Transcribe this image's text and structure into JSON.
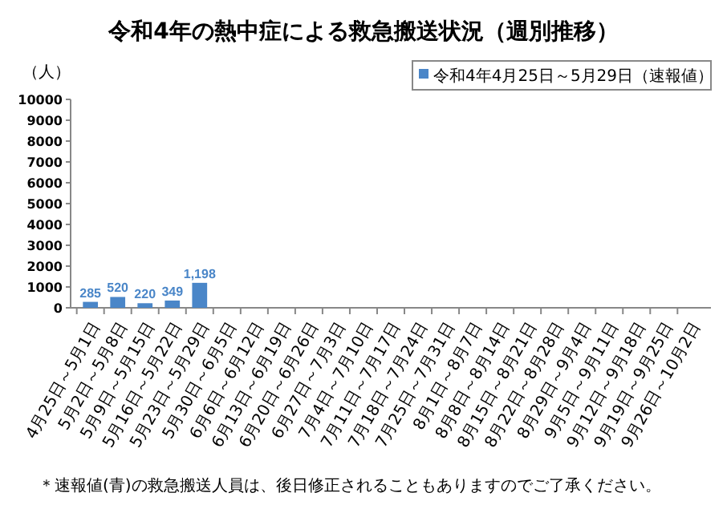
{
  "chart_data": {
    "type": "bar",
    "title": "令和4年の熱中症による救急搬送状況（週別推移）",
    "ylabel": "（人）",
    "categories": [
      "4月25日～5月1日",
      "5月2日～5月8日",
      "5月9日～5月15日",
      "5月16日～5月22日",
      "5月23日～5月29日",
      "5月30日～6月5日",
      "6月6日～6月12日",
      "6月13日～6月19日",
      "6月20日～6月26日",
      "6月27日～7月3日",
      "7月4日～7月10日",
      "7月11日～7月17日",
      "7月18日～7月24日",
      "7月25日～7月31日",
      "8月1日～8月7日",
      "8月8日～8月14日",
      "8月15日～8月21日",
      "8月22日～8月28日",
      "8月29日～9月4日",
      "9月5日～9月11日",
      "9月12日～9月18日",
      "9月19日～9月25日",
      "9月26日～10月2日"
    ],
    "series": [
      {
        "name": "令和4年4月25日～5月29日（速報値）",
        "color": "#4a86c8",
        "values": [
          285,
          520,
          220,
          349,
          1198,
          null,
          null,
          null,
          null,
          null,
          null,
          null,
          null,
          null,
          null,
          null,
          null,
          null,
          null,
          null,
          null,
          null,
          null
        ],
        "value_labels": [
          "285",
          "520",
          "220",
          "349",
          "1,198",
          null,
          null,
          null,
          null,
          null,
          null,
          null,
          null,
          null,
          null,
          null,
          null,
          null,
          null,
          null,
          null,
          null,
          null
        ]
      }
    ],
    "ylim": [
      0,
      10000
    ],
    "yticks": [
      0,
      1000,
      2000,
      3000,
      4000,
      5000,
      6000,
      7000,
      8000,
      9000,
      10000
    ],
    "legend": "top right",
    "annotations": [
      "＊速報値(青)の救急搬送人員は、後日修正されることもありますのでご了承ください。"
    ]
  }
}
